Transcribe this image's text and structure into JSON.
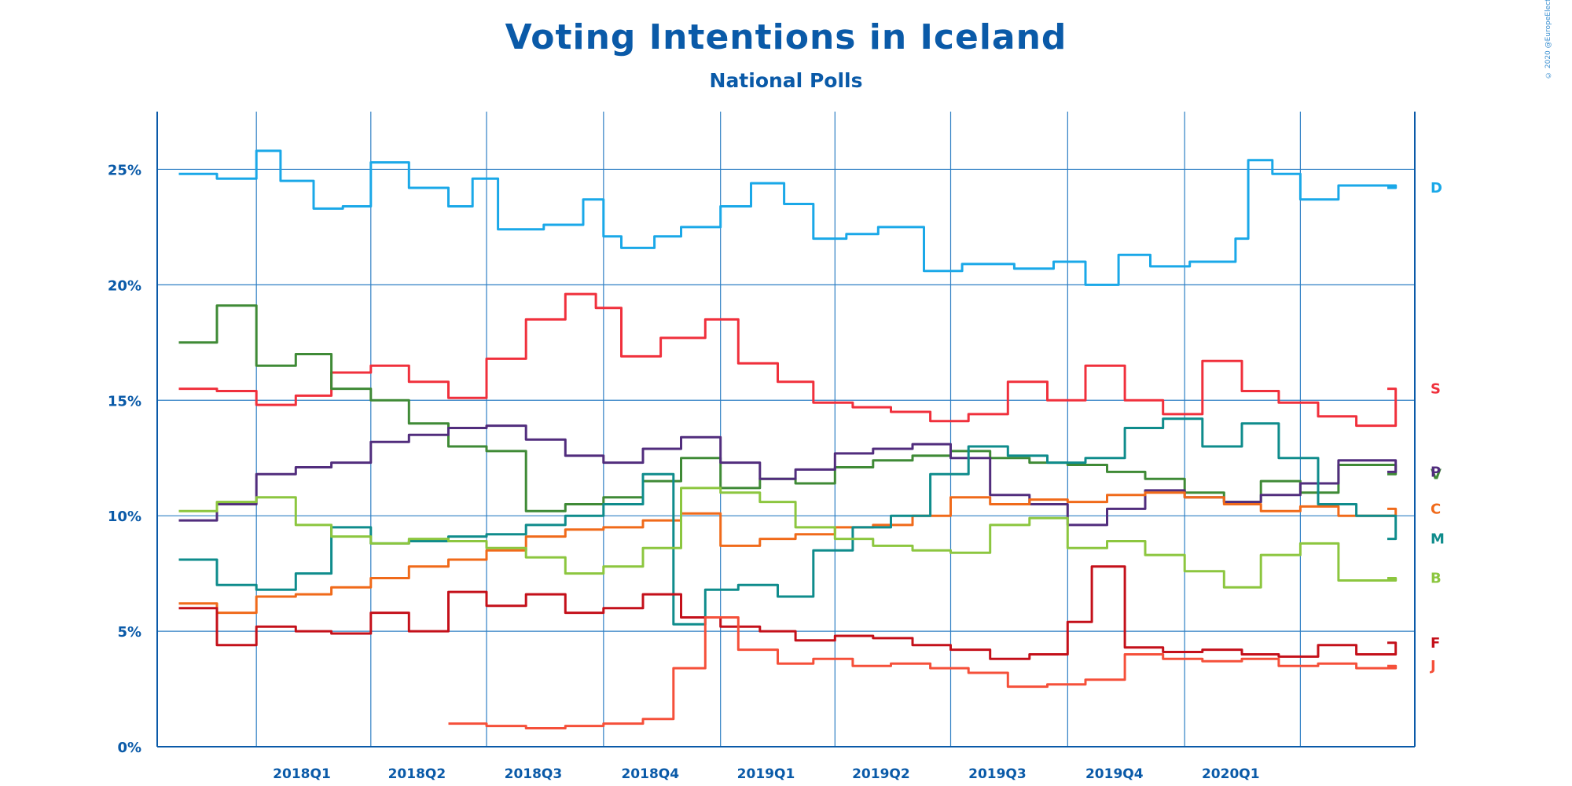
{
  "page": {
    "title": "Voting Intentions in Iceland",
    "subtitle": "National Polls",
    "credit": "© 2020 @EuropeElects"
  },
  "chart_data": {
    "type": "line",
    "title": "Voting Intentions in Iceland",
    "subtitle": "National Polls",
    "xlabel": "",
    "ylabel": "",
    "x_ticks": [
      "2018Q1",
      "2018Q2",
      "2018Q3",
      "2018Q4",
      "2019Q1",
      "2019Q2",
      "2019Q3",
      "2019Q4",
      "2020Q1"
    ],
    "y_ticks": [
      "0%",
      "5%",
      "10%",
      "15%",
      "20%",
      "25%"
    ],
    "ylim": [
      0,
      27.5
    ],
    "xlim": [
      "2017-10-15",
      "2020-06-30"
    ],
    "grid": true,
    "legend": "right, labels at line ends",
    "series": [
      {
        "name": "D",
        "color": "#1aa8e8",
        "x": [
          "2017-11-01",
          "2017-12-01",
          "2018-01-01",
          "2018-01-20",
          "2018-02-15",
          "2018-03-10",
          "2018-04-01",
          "2018-05-01",
          "2018-06-01",
          "2018-06-20",
          "2018-07-10",
          "2018-08-15",
          "2018-09-15",
          "2018-10-01",
          "2018-10-15",
          "2018-11-10",
          "2018-12-01",
          "2019-01-01",
          "2019-01-25",
          "2019-02-20",
          "2019-03-15",
          "2019-04-10",
          "2019-05-05",
          "2019-06-10",
          "2019-07-10",
          "2019-08-20",
          "2019-09-20",
          "2019-10-15",
          "2019-11-10",
          "2019-12-05",
          "2020-01-05",
          "2020-02-10",
          "2020-02-20",
          "2020-03-10",
          "2020-04-01",
          "2020-05-01",
          "2020-06-15"
        ],
        "values": [
          24.8,
          24.6,
          25.8,
          24.5,
          23.3,
          23.4,
          25.3,
          24.2,
          23.4,
          24.6,
          22.4,
          22.6,
          23.7,
          22.1,
          21.6,
          22.1,
          22.5,
          23.4,
          24.4,
          23.5,
          22.0,
          22.2,
          22.5,
          20.6,
          20.9,
          20.7,
          21.0,
          20.0,
          21.3,
          20.8,
          21.0,
          22.0,
          25.4,
          24.8,
          23.7,
          24.3,
          24.2
        ]
      },
      {
        "name": "S",
        "color": "#f0303c",
        "x": [
          "2017-11-01",
          "2017-12-01",
          "2018-01-01",
          "2018-02-01",
          "2018-03-01",
          "2018-04-01",
          "2018-05-01",
          "2018-06-01",
          "2018-07-01",
          "2018-08-01",
          "2018-09-01",
          "2018-09-25",
          "2018-10-15",
          "2018-11-15",
          "2018-12-20",
          "2019-01-15",
          "2019-02-15",
          "2019-03-15",
          "2019-04-15",
          "2019-05-15",
          "2019-06-15",
          "2019-07-15",
          "2019-08-15",
          "2019-09-15",
          "2019-10-15",
          "2019-11-15",
          "2019-12-15",
          "2020-01-15",
          "2020-02-15",
          "2020-03-15",
          "2020-04-15",
          "2020-05-15",
          "2020-06-15"
        ],
        "values": [
          15.5,
          15.4,
          14.8,
          15.2,
          16.2,
          16.5,
          15.8,
          15.1,
          16.8,
          18.5,
          19.6,
          19.0,
          16.9,
          17.7,
          18.5,
          16.6,
          15.8,
          14.9,
          14.7,
          14.5,
          14.1,
          14.4,
          15.8,
          15.0,
          16.5,
          15.0,
          14.4,
          16.7,
          15.4,
          14.9,
          14.3,
          13.9,
          15.5
        ]
      },
      {
        "name": "V",
        "color": "#3f8a36",
        "x": [
          "2017-11-01",
          "2017-12-01",
          "2018-01-01",
          "2018-02-01",
          "2018-03-01",
          "2018-04-01",
          "2018-05-01",
          "2018-06-01",
          "2018-07-01",
          "2018-08-01",
          "2018-09-01",
          "2018-10-01",
          "2018-11-01",
          "2018-12-01",
          "2019-01-01",
          "2019-02-01",
          "2019-03-01",
          "2019-04-01",
          "2019-05-01",
          "2019-06-01",
          "2019-07-01",
          "2019-08-01",
          "2019-09-01",
          "2019-10-01",
          "2019-11-01",
          "2019-12-01",
          "2020-01-01",
          "2020-02-01",
          "2020-03-01",
          "2020-04-01",
          "2020-05-01",
          "2020-06-15"
        ],
        "values": [
          17.5,
          19.1,
          16.5,
          17.0,
          15.5,
          15.0,
          14.0,
          13.0,
          12.8,
          10.2,
          10.5,
          10.8,
          11.5,
          12.5,
          11.2,
          11.6,
          11.4,
          12.1,
          12.4,
          12.6,
          12.8,
          12.5,
          12.3,
          12.2,
          11.9,
          11.6,
          11.0,
          10.6,
          11.5,
          11.0,
          12.2,
          11.8
        ]
      },
      {
        "name": "P",
        "color": "#512d7d",
        "x": [
          "2017-11-01",
          "2017-12-01",
          "2018-01-01",
          "2018-02-01",
          "2018-03-01",
          "2018-04-01",
          "2018-05-01",
          "2018-06-01",
          "2018-07-01",
          "2018-08-01",
          "2018-09-01",
          "2018-10-01",
          "2018-11-01",
          "2018-12-01",
          "2019-01-01",
          "2019-02-01",
          "2019-03-01",
          "2019-04-01",
          "2019-05-01",
          "2019-06-01",
          "2019-07-01",
          "2019-08-01",
          "2019-09-01",
          "2019-10-01",
          "2019-11-01",
          "2019-12-01",
          "2020-01-01",
          "2020-02-01",
          "2020-03-01",
          "2020-04-01",
          "2020-05-01",
          "2020-06-15"
        ],
        "values": [
          9.8,
          10.5,
          11.8,
          12.1,
          12.3,
          13.2,
          13.5,
          13.8,
          13.9,
          13.3,
          12.6,
          12.3,
          12.9,
          13.4,
          12.3,
          11.6,
          12.0,
          12.7,
          12.9,
          13.1,
          12.5,
          10.9,
          10.5,
          9.6,
          10.3,
          11.1,
          10.8,
          10.6,
          10.9,
          11.4,
          12.4,
          11.9
        ]
      },
      {
        "name": "C",
        "color": "#f06a1a",
        "x": [
          "2017-11-01",
          "2017-12-01",
          "2018-01-01",
          "2018-02-01",
          "2018-03-01",
          "2018-04-01",
          "2018-05-01",
          "2018-06-01",
          "2018-07-01",
          "2018-08-01",
          "2018-09-01",
          "2018-10-01",
          "2018-11-01",
          "2018-12-01",
          "2019-01-01",
          "2019-02-01",
          "2019-03-01",
          "2019-04-01",
          "2019-05-01",
          "2019-06-01",
          "2019-07-01",
          "2019-08-01",
          "2019-09-01",
          "2019-10-01",
          "2019-11-01",
          "2019-12-01",
          "2020-01-01",
          "2020-02-01",
          "2020-03-01",
          "2020-04-01",
          "2020-05-01",
          "2020-06-15"
        ],
        "values": [
          6.2,
          5.8,
          6.5,
          6.6,
          6.9,
          7.3,
          7.8,
          8.1,
          8.5,
          9.1,
          9.4,
          9.5,
          9.8,
          10.1,
          8.7,
          9.0,
          9.2,
          9.5,
          9.6,
          10.0,
          10.8,
          10.5,
          10.7,
          10.6,
          10.9,
          11.0,
          10.8,
          10.5,
          10.2,
          10.4,
          10.0,
          10.3
        ]
      },
      {
        "name": "M",
        "color": "#0f8c8c",
        "x": [
          "2017-11-01",
          "2017-12-01",
          "2018-01-01",
          "2018-02-01",
          "2018-03-01",
          "2018-04-01",
          "2018-05-01",
          "2018-06-01",
          "2018-07-01",
          "2018-08-01",
          "2018-09-01",
          "2018-10-01",
          "2018-11-01",
          "2018-11-25",
          "2018-12-20",
          "2019-01-15",
          "2019-02-15",
          "2019-03-15",
          "2019-04-15",
          "2019-05-15",
          "2019-06-15",
          "2019-07-15",
          "2019-08-15",
          "2019-09-15",
          "2019-10-15",
          "2019-11-15",
          "2019-12-15",
          "2020-01-15",
          "2020-02-15",
          "2020-03-15",
          "2020-04-15",
          "2020-05-15",
          "2020-06-15"
        ],
        "values": [
          8.1,
          7.0,
          6.8,
          7.5,
          9.5,
          8.8,
          8.9,
          9.1,
          9.2,
          9.6,
          10.0,
          10.5,
          11.8,
          5.3,
          6.8,
          7.0,
          6.5,
          8.5,
          9.5,
          10.0,
          11.8,
          13.0,
          12.6,
          12.3,
          12.5,
          13.8,
          14.2,
          13.0,
          14.0,
          12.5,
          10.5,
          10.0,
          9.0
        ]
      },
      {
        "name": "B",
        "color": "#8cc63f",
        "x": [
          "2017-11-01",
          "2017-12-01",
          "2018-01-01",
          "2018-02-01",
          "2018-03-01",
          "2018-04-01",
          "2018-05-01",
          "2018-06-01",
          "2018-07-01",
          "2018-08-01",
          "2018-09-01",
          "2018-10-01",
          "2018-11-01",
          "2018-12-01",
          "2019-01-01",
          "2019-02-01",
          "2019-03-01",
          "2019-04-01",
          "2019-05-01",
          "2019-06-01",
          "2019-07-01",
          "2019-08-01",
          "2019-09-01",
          "2019-10-01",
          "2019-11-01",
          "2019-12-01",
          "2020-01-01",
          "2020-02-01",
          "2020-03-01",
          "2020-04-01",
          "2020-05-01",
          "2020-06-15"
        ],
        "values": [
          10.2,
          10.6,
          10.8,
          9.6,
          9.1,
          8.8,
          9.0,
          8.9,
          8.6,
          8.2,
          7.5,
          7.8,
          8.6,
          11.2,
          11.0,
          10.6,
          9.5,
          9.0,
          8.7,
          8.5,
          8.4,
          9.6,
          9.9,
          8.6,
          8.9,
          8.3,
          7.6,
          6.9,
          8.3,
          8.8,
          7.2,
          7.3
        ]
      },
      {
        "name": "F",
        "color": "#c4101a",
        "x": [
          "2017-11-01",
          "2017-12-01",
          "2018-01-01",
          "2018-02-01",
          "2018-03-01",
          "2018-04-01",
          "2018-05-01",
          "2018-06-01",
          "2018-07-01",
          "2018-08-01",
          "2018-09-01",
          "2018-10-01",
          "2018-11-01",
          "2018-12-01",
          "2019-01-01",
          "2019-02-01",
          "2019-03-01",
          "2019-04-01",
          "2019-05-01",
          "2019-06-01",
          "2019-07-01",
          "2019-08-01",
          "2019-09-01",
          "2019-10-01",
          "2019-10-20",
          "2019-11-15",
          "2019-12-15",
          "2020-01-15",
          "2020-02-15",
          "2020-03-15",
          "2020-04-15",
          "2020-05-15",
          "2020-06-15"
        ],
        "values": [
          6.0,
          4.4,
          5.2,
          5.0,
          4.9,
          5.8,
          5.0,
          6.7,
          6.1,
          6.6,
          5.8,
          6.0,
          6.6,
          5.6,
          5.2,
          5.0,
          4.6,
          4.8,
          4.7,
          4.4,
          4.2,
          3.8,
          4.0,
          5.4,
          7.8,
          4.3,
          4.1,
          4.2,
          4.0,
          3.9,
          4.4,
          4.0,
          4.5
        ]
      },
      {
        "name": "J",
        "color": "#f5503a",
        "x": [
          "2018-06-01",
          "2018-07-01",
          "2018-08-01",
          "2018-09-01",
          "2018-10-01",
          "2018-11-01",
          "2018-11-25",
          "2018-12-10",
          "2018-12-20",
          "2019-01-15",
          "2019-02-15",
          "2019-03-15",
          "2019-04-15",
          "2019-05-15",
          "2019-06-15",
          "2019-07-15",
          "2019-08-15",
          "2019-09-15",
          "2019-10-15",
          "2019-11-15",
          "2019-12-15",
          "2020-01-15",
          "2020-02-15",
          "2020-03-15",
          "2020-04-15",
          "2020-05-15",
          "2020-06-15"
        ],
        "values": [
          1.0,
          0.9,
          0.8,
          0.9,
          1.0,
          1.2,
          3.4,
          3.4,
          5.6,
          4.2,
          3.6,
          3.8,
          3.5,
          3.6,
          3.4,
          3.2,
          2.6,
          2.7,
          2.9,
          4.0,
          3.8,
          3.7,
          3.8,
          3.5,
          3.6,
          3.4,
          3.5
        ]
      }
    ]
  }
}
